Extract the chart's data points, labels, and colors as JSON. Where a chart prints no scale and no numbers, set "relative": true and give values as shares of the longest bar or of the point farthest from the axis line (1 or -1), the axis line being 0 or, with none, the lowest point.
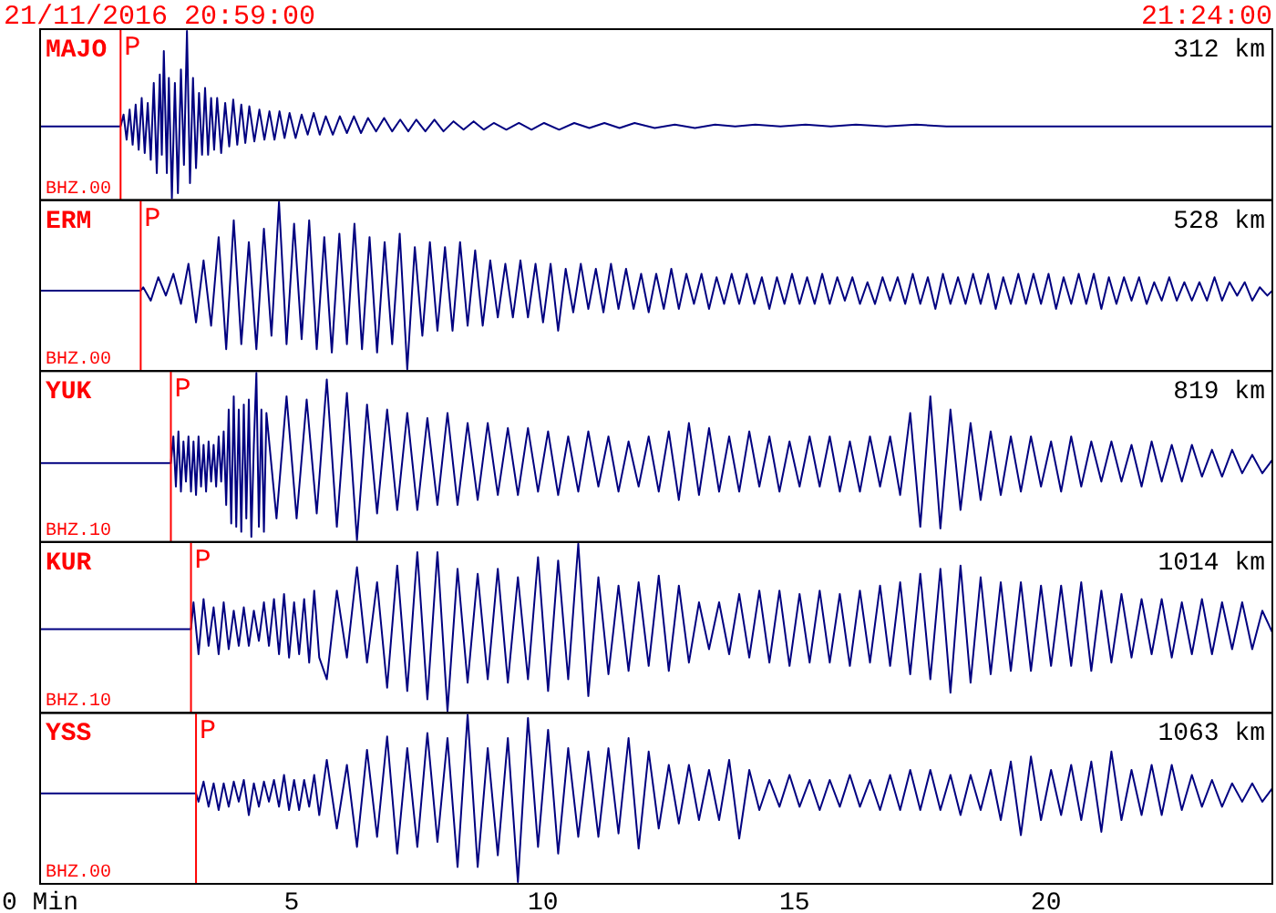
{
  "chart_data": [
    {
      "type": "line",
      "title": "MAJO",
      "annotations": [
        "21/11/2016 20:59:00",
        "21:24:00",
        "312 km",
        "BHZ.00"
      ],
      "relative": true,
      "xlim": [
        0,
        24.5
      ],
      "tick_labels": false,
      "ref_lines": [
        {
          "axis": "x",
          "value": 1.6,
          "label": "P",
          "color": "#ff0000"
        }
      ],
      "x": [
        0,
        1.6,
        1.66,
        1.72,
        1.78,
        1.84,
        1.9,
        1.96,
        2.02,
        2.08,
        2.14,
        2.2,
        2.26,
        2.32,
        2.38,
        2.42,
        2.46,
        2.52,
        2.56,
        2.62,
        2.68,
        2.74,
        2.8,
        2.86,
        2.92,
        2.98,
        3.04,
        3.1,
        3.16,
        3.22,
        3.28,
        3.34,
        3.4,
        3.46,
        3.52,
        3.6,
        3.68,
        3.76,
        3.84,
        3.92,
        4,
        4.08,
        4.16,
        4.26,
        4.36,
        4.46,
        4.56,
        4.66,
        4.76,
        4.86,
        4.96,
        5.08,
        5.2,
        5.32,
        5.44,
        5.56,
        5.68,
        5.82,
        5.96,
        6.1,
        6.24,
        6.38,
        6.52,
        6.68,
        6.84,
        7,
        7.16,
        7.32,
        7.48,
        7.66,
        7.84,
        8.02,
        8.22,
        8.42,
        8.62,
        8.82,
        9.02,
        9.27,
        9.52,
        9.77,
        10.02,
        10.32,
        10.62,
        10.92,
        11.22,
        11.52,
        11.82,
        12.22,
        12.62,
        13.02,
        13.42,
        13.82,
        14.22,
        14.72,
        15.22,
        15.72,
        16.22,
        16.82,
        17.42,
        18.02,
        24.5
      ],
      "series": [
        {
          "color": "#000080",
          "values": [
            0.43,
            0.43,
            0.5,
            0.35,
            0.53,
            0.32,
            0.56,
            0.29,
            0.6,
            0.27,
            0.57,
            0.23,
            0.69,
            0.15,
            0.74,
            0.26,
            0.88,
            0.15,
            0.72,
            0,
            0.69,
            0.03,
            0.77,
            0.2,
            1,
            0.09,
            0.72,
            0.18,
            0.63,
            0.26,
            0.66,
            0.26,
            0.6,
            0.29,
            0.6,
            0.27,
            0.57,
            0.31,
            0.59,
            0.32,
            0.56,
            0.33,
            0.55,
            0.34,
            0.53,
            0.35,
            0.52,
            0.35,
            0.52,
            0.36,
            0.51,
            0.36,
            0.5,
            0.38,
            0.51,
            0.38,
            0.49,
            0.38,
            0.49,
            0.39,
            0.49,
            0.39,
            0.48,
            0.4,
            0.48,
            0.4,
            0.47,
            0.4,
            0.47,
            0.4,
            0.47,
            0.4,
            0.46,
            0.41,
            0.46,
            0.41,
            0.45,
            0.41,
            0.45,
            0.41,
            0.45,
            0.41,
            0.45,
            0.42,
            0.45,
            0.42,
            0.45,
            0.42,
            0.44,
            0.42,
            0.44,
            0.43,
            0.44,
            0.43,
            0.44,
            0.43,
            0.44,
            0.43,
            0.44,
            0.43,
            0.43
          ]
        }
      ]
    },
    {
      "type": "line",
      "title": "ERM",
      "annotations": [
        "528 km",
        "BHZ.00"
      ],
      "relative": true,
      "xlim": [
        0,
        24.5
      ],
      "tick_labels": false,
      "ref_lines": [
        {
          "axis": "x",
          "value": 2,
          "label": "P",
          "color": "#ff0000"
        }
      ],
      "x": [
        0,
        2,
        2.05,
        2.2,
        2.35,
        2.5,
        2.65,
        2.8,
        2.95,
        3.1,
        3.25,
        3.4,
        3.55,
        3.7,
        3.85,
        4,
        4.15,
        4.3,
        4.45,
        4.6,
        4.75,
        4.9,
        5.05,
        5.2,
        5.35,
        5.5,
        5.65,
        5.8,
        5.95,
        6.1,
        6.25,
        6.4,
        6.55,
        6.7,
        6.85,
        7,
        7.15,
        7.3,
        7.45,
        7.6,
        7.75,
        7.9,
        8.05,
        8.2,
        8.35,
        8.5,
        8.65,
        8.8,
        8.95,
        9.1,
        9.25,
        9.4,
        9.55,
        9.7,
        9.85,
        10,
        10.15,
        10.3,
        10.45,
        10.6,
        10.75,
        10.9,
        11.05,
        11.2,
        11.35,
        11.5,
        11.65,
        11.8,
        11.95,
        12.1,
        12.25,
        12.4,
        12.55,
        12.7,
        12.85,
        13,
        13.15,
        13.3,
        13.45,
        13.6,
        13.75,
        13.9,
        14.05,
        14.2,
        14.35,
        14.5,
        14.65,
        14.8,
        14.95,
        15.1,
        15.25,
        15.4,
        15.55,
        15.7,
        15.85,
        16,
        16.15,
        16.3,
        16.45,
        16.6,
        16.75,
        16.9,
        17.05,
        17.2,
        17.35,
        17.5,
        17.65,
        17.8,
        17.95,
        18.1,
        18.25,
        18.4,
        18.55,
        18.7,
        18.85,
        19,
        19.15,
        19.3,
        19.45,
        19.6,
        19.75,
        19.9,
        20.05,
        20.2,
        20.35,
        20.5,
        20.65,
        20.8,
        20.95,
        21.1,
        21.25,
        21.4,
        21.55,
        21.7,
        21.85,
        22,
        22.15,
        22.3,
        22.45,
        22.6,
        22.75,
        22.9,
        23.05,
        23.2,
        23.35,
        23.5,
        23.65,
        23.8,
        23.95,
        24.1,
        24.25,
        24.4,
        24.5
      ],
      "series": [
        {
          "color": "#000080",
          "values": [
            0.47,
            0.47,
            0.49,
            0.41,
            0.55,
            0.44,
            0.57,
            0.39,
            0.63,
            0.28,
            0.65,
            0.26,
            0.79,
            0.12,
            0.89,
            0.15,
            0.76,
            0.12,
            0.84,
            0.2,
            1,
            0.15,
            0.87,
            0.18,
            0.89,
            0.12,
            0.79,
            0.1,
            0.81,
            0.15,
            0.87,
            0.12,
            0.79,
            0.1,
            0.76,
            0.15,
            0.81,
            0,
            0.73,
            0.2,
            0.76,
            0.23,
            0.73,
            0.23,
            0.76,
            0.26,
            0.71,
            0.26,
            0.65,
            0.31,
            0.63,
            0.31,
            0.65,
            0.31,
            0.63,
            0.28,
            0.63,
            0.23,
            0.6,
            0.34,
            0.63,
            0.36,
            0.6,
            0.34,
            0.63,
            0.36,
            0.6,
            0.36,
            0.57,
            0.34,
            0.57,
            0.36,
            0.6,
            0.36,
            0.57,
            0.39,
            0.57,
            0.36,
            0.55,
            0.39,
            0.57,
            0.39,
            0.57,
            0.39,
            0.55,
            0.36,
            0.55,
            0.39,
            0.57,
            0.39,
            0.55,
            0.39,
            0.57,
            0.39,
            0.55,
            0.41,
            0.55,
            0.39,
            0.52,
            0.39,
            0.55,
            0.41,
            0.55,
            0.39,
            0.57,
            0.39,
            0.55,
            0.36,
            0.57,
            0.39,
            0.55,
            0.39,
            0.57,
            0.39,
            0.57,
            0.36,
            0.55,
            0.39,
            0.57,
            0.39,
            0.57,
            0.39,
            0.57,
            0.36,
            0.55,
            0.39,
            0.57,
            0.39,
            0.57,
            0.36,
            0.55,
            0.39,
            0.55,
            0.41,
            0.55,
            0.39,
            0.52,
            0.41,
            0.55,
            0.41,
            0.52,
            0.41,
            0.52,
            0.41,
            0.55,
            0.41,
            0.52,
            0.44,
            0.52,
            0.41,
            0.49,
            0.44,
            0.47
          ]
        }
      ]
    },
    {
      "type": "line",
      "title": "YUK",
      "annotations": [
        "819 km",
        "BHZ.10"
      ],
      "relative": true,
      "xlim": [
        0,
        24.5
      ],
      "tick_labels": false,
      "ref_lines": [
        {
          "axis": "x",
          "value": 2.6,
          "label": "P",
          "color": "#ff0000"
        }
      ],
      "x": [
        0,
        2.6,
        2.65,
        2.7,
        2.75,
        2.8,
        2.85,
        2.9,
        2.95,
        3,
        3.05,
        3.1,
        3.15,
        3.2,
        3.25,
        3.3,
        3.35,
        3.4,
        3.45,
        3.5,
        3.55,
        3.6,
        3.65,
        3.7,
        3.75,
        3.8,
        3.85,
        3.9,
        3.95,
        4,
        4.05,
        4.1,
        4.15,
        4.2,
        4.25,
        4.3,
        4.35,
        4.4,
        4.45,
        4.5,
        4.7,
        4.9,
        5.1,
        5.3,
        5.5,
        5.7,
        5.9,
        6.1,
        6.3,
        6.5,
        6.7,
        6.9,
        7.1,
        7.3,
        7.5,
        7.7,
        7.9,
        8.1,
        8.3,
        8.5,
        8.7,
        8.9,
        9.1,
        9.3,
        9.5,
        9.7,
        9.9,
        10.1,
        10.3,
        10.5,
        10.7,
        10.9,
        11.1,
        11.3,
        11.5,
        11.7,
        11.9,
        12.1,
        12.3,
        12.5,
        12.7,
        12.9,
        13.1,
        13.3,
        13.5,
        13.7,
        13.9,
        14.1,
        14.3,
        14.5,
        14.7,
        14.9,
        15.1,
        15.3,
        15.5,
        15.7,
        15.9,
        16.1,
        16.3,
        16.5,
        16.7,
        16.9,
        17.1,
        17.3,
        17.5,
        17.7,
        17.9,
        18.1,
        18.3,
        18.5,
        18.7,
        18.9,
        19.1,
        19.3,
        19.5,
        19.7,
        19.9,
        20.1,
        20.3,
        20.5,
        20.7,
        20.9,
        21.1,
        21.3,
        21.5,
        21.7,
        21.9,
        22.1,
        22.3,
        22.5,
        22.7,
        22.9,
        23.1,
        23.3,
        23.5,
        23.7,
        23.9,
        24.1,
        24.3,
        24.5
      ],
      "series": [
        {
          "color": "#000080",
          "values": [
            0.46,
            0.46,
            0.62,
            0.32,
            0.65,
            0.29,
            0.59,
            0.35,
            0.62,
            0.29,
            0.59,
            0.27,
            0.62,
            0.32,
            0.57,
            0.29,
            0.59,
            0.35,
            0.57,
            0.32,
            0.62,
            0.35,
            0.65,
            0.21,
            0.78,
            0.1,
            0.86,
            0.08,
            0.78,
            0.05,
            0.81,
            0.13,
            0.84,
            0.02,
            0.57,
            1,
            0.08,
            0.78,
            0.05,
            0.76,
            0.13,
            0.86,
            0.13,
            0.84,
            0.16,
            0.96,
            0.08,
            0.88,
            0,
            0.81,
            0.16,
            0.78,
            0.18,
            0.76,
            0.18,
            0.73,
            0.21,
            0.76,
            0.21,
            0.7,
            0.24,
            0.7,
            0.27,
            0.67,
            0.27,
            0.67,
            0.29,
            0.65,
            0.27,
            0.62,
            0.29,
            0.65,
            0.32,
            0.62,
            0.29,
            0.59,
            0.32,
            0.62,
            0.29,
            0.65,
            0.24,
            0.7,
            0.27,
            0.67,
            0.29,
            0.62,
            0.29,
            0.65,
            0.32,
            0.62,
            0.29,
            0.59,
            0.32,
            0.62,
            0.32,
            0.62,
            0.29,
            0.59,
            0.29,
            0.62,
            0.32,
            0.62,
            0.27,
            0.76,
            0.08,
            0.86,
            0.07,
            0.78,
            0.18,
            0.7,
            0.24,
            0.65,
            0.27,
            0.62,
            0.29,
            0.62,
            0.32,
            0.59,
            0.29,
            0.62,
            0.32,
            0.59,
            0.35,
            0.59,
            0.35,
            0.57,
            0.32,
            0.59,
            0.35,
            0.57,
            0.35,
            0.57,
            0.38,
            0.54,
            0.38,
            0.54,
            0.4,
            0.51,
            0.4,
            0.48
          ]
        }
      ]
    },
    {
      "type": "line",
      "title": "KUR",
      "annotations": [
        "1014 km",
        "BHZ.10"
      ],
      "relative": true,
      "xlim": [
        0,
        24.5
      ],
      "tick_labels": false,
      "ref_lines": [
        {
          "axis": "x",
          "value": 3,
          "label": "P",
          "color": "#ff0000"
        }
      ],
      "x": [
        0,
        3,
        3.05,
        3.15,
        3.25,
        3.35,
        3.45,
        3.55,
        3.65,
        3.75,
        3.85,
        3.95,
        4.05,
        4.15,
        4.25,
        4.35,
        4.45,
        4.55,
        4.65,
        4.75,
        4.85,
        4.95,
        5.05,
        5.15,
        5.25,
        5.35,
        5.45,
        5.55,
        5.7,
        5.9,
        6.1,
        6.3,
        6.5,
        6.7,
        6.9,
        7.1,
        7.3,
        7.5,
        7.7,
        7.9,
        8.1,
        8.3,
        8.5,
        8.7,
        8.9,
        9.1,
        9.3,
        9.5,
        9.7,
        9.9,
        10.1,
        10.3,
        10.5,
        10.7,
        10.9,
        11.1,
        11.3,
        11.5,
        11.7,
        11.9,
        12.1,
        12.3,
        12.5,
        12.7,
        12.9,
        13.1,
        13.3,
        13.5,
        13.7,
        13.9,
        14.1,
        14.3,
        14.5,
        14.7,
        14.9,
        15.1,
        15.3,
        15.5,
        15.7,
        15.9,
        16.1,
        16.3,
        16.5,
        16.7,
        16.9,
        17.1,
        17.3,
        17.5,
        17.7,
        17.9,
        18.1,
        18.3,
        18.5,
        18.7,
        18.9,
        19.1,
        19.3,
        19.5,
        19.7,
        19.9,
        20.1,
        20.3,
        20.5,
        20.7,
        20.9,
        21.1,
        21.3,
        21.5,
        21.7,
        21.9,
        22.1,
        22.3,
        22.5,
        22.7,
        22.9,
        23.1,
        23.3,
        23.5,
        23.7,
        23.9,
        24.1,
        24.3,
        24.5
      ],
      "series": [
        {
          "color": "#000080",
          "values": [
            0.49,
            0.49,
            0.65,
            0.34,
            0.67,
            0.39,
            0.62,
            0.34,
            0.65,
            0.37,
            0.6,
            0.39,
            0.62,
            0.39,
            0.6,
            0.42,
            0.65,
            0.39,
            0.67,
            0.34,
            0.7,
            0.32,
            0.65,
            0.34,
            0.67,
            0.29,
            0.72,
            0.32,
            0.19,
            0.72,
            0.32,
            0.86,
            0.29,
            0.77,
            0.14,
            0.87,
            0.12,
            0.95,
            0.07,
            0.95,
            0,
            0.85,
            0.17,
            0.82,
            0.19,
            0.85,
            0.17,
            0.8,
            0.19,
            0.92,
            0.12,
            0.9,
            0.19,
            1,
            0.09,
            0.8,
            0.22,
            0.75,
            0.24,
            0.77,
            0.27,
            0.81,
            0.24,
            0.75,
            0.29,
            0.65,
            0.37,
            0.65,
            0.34,
            0.7,
            0.32,
            0.72,
            0.29,
            0.72,
            0.27,
            0.7,
            0.29,
            0.72,
            0.29,
            0.7,
            0.27,
            0.72,
            0.29,
            0.75,
            0.27,
            0.77,
            0.22,
            0.82,
            0.19,
            0.85,
            0.11,
            0.87,
            0.17,
            0.8,
            0.22,
            0.77,
            0.24,
            0.77,
            0.24,
            0.75,
            0.27,
            0.75,
            0.27,
            0.77,
            0.24,
            0.72,
            0.29,
            0.7,
            0.32,
            0.67,
            0.34,
            0.67,
            0.32,
            0.65,
            0.34,
            0.67,
            0.34,
            0.65,
            0.37,
            0.65,
            0.37,
            0.6,
            0.47
          ]
        }
      ]
    },
    {
      "type": "line",
      "title": "YSS",
      "annotations": [
        "1063 km",
        "BHZ.00"
      ],
      "relative": true,
      "xlim": [
        0,
        24.5
      ],
      "xticks": [
        {
          "value": 0,
          "label": "0 Min"
        },
        5,
        10,
        15,
        20
      ],
      "tick_labels": "x",
      "ref_lines": [
        {
          "axis": "x",
          "value": 3.1,
          "label": "P",
          "color": "#ff0000"
        }
      ],
      "x": [
        0,
        3.1,
        3.15,
        3.25,
        3.35,
        3.45,
        3.55,
        3.65,
        3.75,
        3.85,
        3.95,
        4.05,
        4.15,
        4.25,
        4.35,
        4.45,
        4.55,
        4.65,
        4.75,
        4.85,
        4.95,
        5.05,
        5.15,
        5.25,
        5.35,
        5.45,
        5.55,
        5.7,
        5.9,
        6.1,
        6.3,
        6.5,
        6.7,
        6.9,
        7.1,
        7.3,
        7.5,
        7.7,
        7.9,
        8.1,
        8.3,
        8.5,
        8.7,
        8.9,
        9.1,
        9.3,
        9.5,
        9.7,
        9.9,
        10.1,
        10.3,
        10.5,
        10.7,
        10.9,
        11.1,
        11.3,
        11.5,
        11.7,
        11.9,
        12.1,
        12.3,
        12.5,
        12.7,
        12.9,
        13.1,
        13.3,
        13.5,
        13.7,
        13.9,
        14.1,
        14.3,
        14.5,
        14.7,
        14.9,
        15.1,
        15.3,
        15.5,
        15.7,
        15.9,
        16.1,
        16.3,
        16.5,
        16.7,
        16.9,
        17.1,
        17.3,
        17.5,
        17.7,
        17.9,
        18.1,
        18.3,
        18.5,
        18.7,
        18.9,
        19.1,
        19.3,
        19.5,
        19.7,
        19.9,
        20.1,
        20.3,
        20.5,
        20.7,
        20.9,
        21.1,
        21.3,
        21.5,
        21.7,
        21.9,
        22.1,
        22.3,
        22.5,
        22.7,
        22.9,
        23.1,
        23.3,
        23.5,
        23.7,
        23.9,
        24.1,
        24.3,
        24.5
      ],
      "series": [
        {
          "color": "#000080",
          "values": [
            0.53,
            0.53,
            0.48,
            0.6,
            0.45,
            0.59,
            0.43,
            0.59,
            0.45,
            0.6,
            0.48,
            0.61,
            0.4,
            0.59,
            0.45,
            0.6,
            0.48,
            0.61,
            0.45,
            0.64,
            0.43,
            0.61,
            0.43,
            0.61,
            0.45,
            0.64,
            0.4,
            0.73,
            0.32,
            0.7,
            0.21,
            0.79,
            0.27,
            0.87,
            0.17,
            0.8,
            0.21,
            0.89,
            0.24,
            0.86,
            0.09,
            1,
            0.09,
            0.8,
            0.16,
            0.86,
            0,
            0.98,
            0.21,
            0.91,
            0.17,
            0.8,
            0.27,
            0.78,
            0.27,
            0.8,
            0.29,
            0.86,
            0.2,
            0.78,
            0.32,
            0.7,
            0.35,
            0.7,
            0.37,
            0.67,
            0.37,
            0.73,
            0.26,
            0.67,
            0.43,
            0.61,
            0.45,
            0.64,
            0.45,
            0.61,
            0.43,
            0.61,
            0.45,
            0.64,
            0.45,
            0.61,
            0.43,
            0.64,
            0.43,
            0.67,
            0.43,
            0.67,
            0.43,
            0.64,
            0.4,
            0.64,
            0.43,
            0.67,
            0.37,
            0.72,
            0.28,
            0.75,
            0.37,
            0.67,
            0.4,
            0.7,
            0.37,
            0.72,
            0.3,
            0.78,
            0.37,
            0.67,
            0.4,
            0.7,
            0.4,
            0.7,
            0.43,
            0.64,
            0.45,
            0.61,
            0.45,
            0.59,
            0.48,
            0.59,
            0.48,
            0.56
          ]
        }
      ]
    }
  ]
}
